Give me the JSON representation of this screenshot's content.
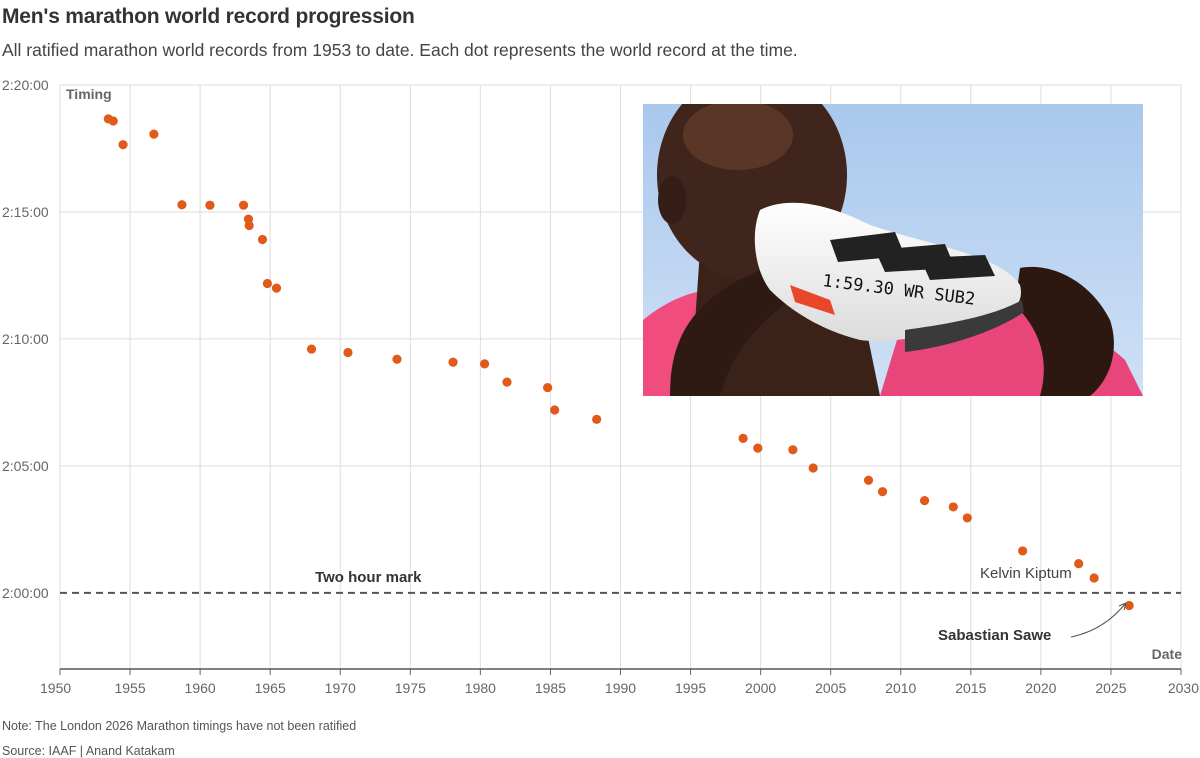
{
  "header": {
    "title": "Men's marathon world record progression",
    "subtitle": "All ratified marathon world records from 1953 to date. Each dot represents the world record at the time."
  },
  "footer": {
    "note": "Note: The London 2026 Marathon timings have not been ratified",
    "source": "Source: IAAF | Anand Katakam"
  },
  "photo": {
    "shoe_writing": "1:59.30 WR SUB2",
    "description_icon": "runner-kissing-shoe-photo"
  },
  "chart_data": {
    "type": "scatter",
    "title": "Men's marathon world record progression",
    "xlabel": "Date",
    "ylabel": "Timing",
    "xlim": [
      1950,
      2030
    ],
    "ylim": [
      "1:57:00",
      "2:20:00"
    ],
    "x_ticks": [
      "1950",
      "1955",
      "1960",
      "1965",
      "1970",
      "1975",
      "1980",
      "1985",
      "1990",
      "1995",
      "2000",
      "2005",
      "2010",
      "2015",
      "2020",
      "2025",
      "2030"
    ],
    "y_ticks": [
      "2:00:00",
      "2:05:00",
      "2:10:00",
      "2:15:00",
      "2:20:00"
    ],
    "grid": true,
    "point_color": "#e05a1a",
    "reference_line": {
      "label": "Two hour mark",
      "y": "2:00:00",
      "style": "dashed"
    },
    "annotations": [
      {
        "text": "Kelvin Kiptum",
        "x": 2023.8,
        "y": "2:00:35"
      },
      {
        "text": "Sabastian Sawe",
        "x": 2026.3,
        "y": "1:59:30"
      }
    ],
    "points": [
      {
        "x": 1953.45,
        "y": "2:18:40"
      },
      {
        "x": 1953.8,
        "y": "2:18:35"
      },
      {
        "x": 1954.5,
        "y": "2:17:39"
      },
      {
        "x": 1956.7,
        "y": "2:18:04"
      },
      {
        "x": 1958.7,
        "y": "2:15:17"
      },
      {
        "x": 1960.7,
        "y": "2:15:16"
      },
      {
        "x": 1963.1,
        "y": "2:15:16"
      },
      {
        "x": 1963.45,
        "y": "2:14:43"
      },
      {
        "x": 1963.5,
        "y": "2:14:28"
      },
      {
        "x": 1964.45,
        "y": "2:13:55"
      },
      {
        "x": 1964.8,
        "y": "2:12:11"
      },
      {
        "x": 1965.45,
        "y": "2:12:00"
      },
      {
        "x": 1967.95,
        "y": "2:09:36"
      },
      {
        "x": 1970.55,
        "y": "2:09:28"
      },
      {
        "x": 1974.05,
        "y": "2:09:12"
      },
      {
        "x": 1978.05,
        "y": "2:09:05"
      },
      {
        "x": 1980.3,
        "y": "2:09:01"
      },
      {
        "x": 1981.9,
        "y": "2:08:18"
      },
      {
        "x": 1984.8,
        "y": "2:08:05"
      },
      {
        "x": 1985.3,
        "y": "2:07:12"
      },
      {
        "x": 1988.3,
        "y": "2:06:50"
      },
      {
        "x": 1998.75,
        "y": "2:06:05"
      },
      {
        "x": 1999.8,
        "y": "2:05:42"
      },
      {
        "x": 2002.3,
        "y": "2:05:38"
      },
      {
        "x": 2003.75,
        "y": "2:04:55"
      },
      {
        "x": 2007.7,
        "y": "2:04:26"
      },
      {
        "x": 2008.7,
        "y": "2:03:59"
      },
      {
        "x": 2011.7,
        "y": "2:03:38"
      },
      {
        "x": 2013.75,
        "y": "2:03:23"
      },
      {
        "x": 2014.75,
        "y": "2:02:57"
      },
      {
        "x": 2018.7,
        "y": "2:01:39"
      },
      {
        "x": 2022.7,
        "y": "2:01:09"
      },
      {
        "x": 2023.8,
        "y": "2:00:35"
      },
      {
        "x": 2026.3,
        "y": "1:59:30"
      }
    ]
  }
}
